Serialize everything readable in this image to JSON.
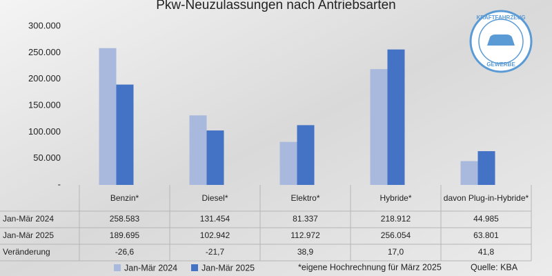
{
  "chart_data": {
    "type": "bar",
    "title": "Pkw-Neuzulassungen nach Antriebsarten",
    "categories": [
      "Benzin*",
      "Diesel*",
      "Elektro*",
      "Hybride*",
      "davon Plug-in-Hybride*"
    ],
    "series": [
      {
        "name": "Jan-Mär 2024",
        "color": "#a9b8dd",
        "values": [
          258583,
          131454,
          81337,
          218912,
          44985
        ],
        "value_labels": [
          "258.583",
          "131.454",
          "81.337",
          "218.912",
          "44.985"
        ]
      },
      {
        "name": "Jan-Mär 2025",
        "color": "#4472c4",
        "values": [
          189695,
          102942,
          112972,
          256054,
          63801
        ],
        "value_labels": [
          "189.695",
          "102.942",
          "112.972",
          "256.054",
          "63.801"
        ]
      }
    ],
    "change": {
      "label": "Veränderung",
      "values": [
        -26.6,
        -21.7,
        38.9,
        17.0,
        41.8
      ],
      "value_labels": [
        "-26,6",
        "-21,7",
        "38,9",
        "17,0",
        "41,8"
      ]
    },
    "ylim": [
      0,
      300000
    ],
    "yticks": [
      {
        "value": 0,
        "label": "-"
      },
      {
        "value": 50000,
        "label": "50.000"
      },
      {
        "value": 100000,
        "label": "100.000"
      },
      {
        "value": 150000,
        "label": "150.000"
      },
      {
        "value": 200000,
        "label": "200.000"
      },
      {
        "value": 250000,
        "label": "250.000"
      },
      {
        "value": 300000,
        "label": "300.000"
      }
    ],
    "footnote": "*eigene Hochrechnung für März 2025",
    "source": "Quelle: KBA",
    "logo": {
      "top": "KRAFTFAHRZEUG",
      "bottom": "GEWERBE"
    }
  }
}
